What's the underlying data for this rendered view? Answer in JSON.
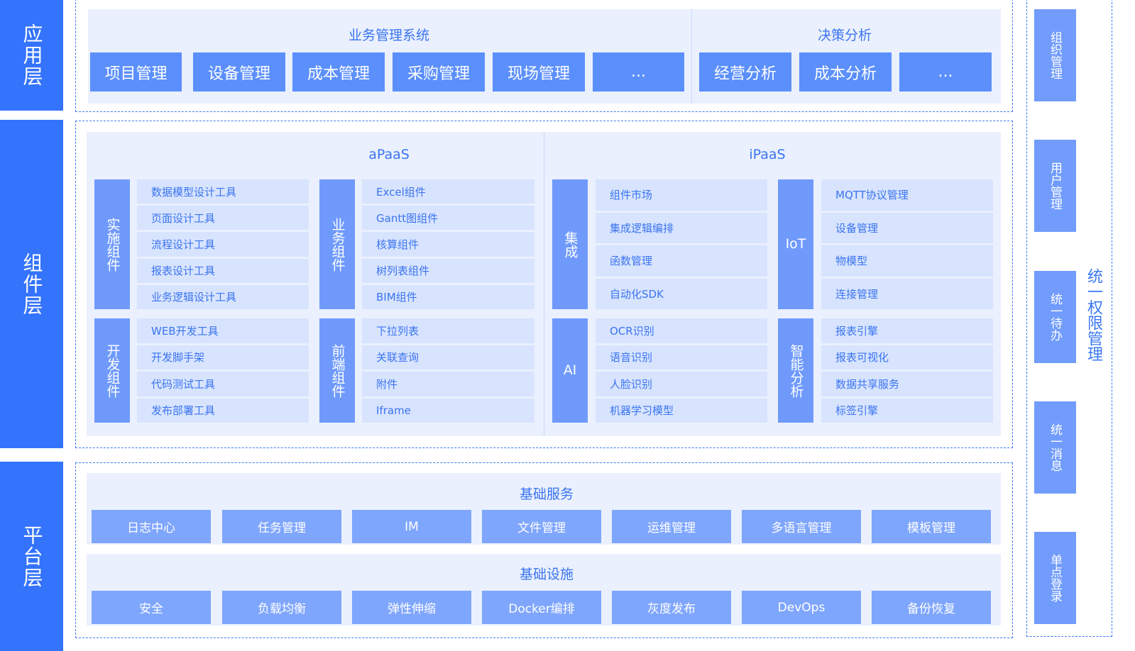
{
  "layers": {
    "app": "应用层",
    "component": "组件层",
    "platform": "平台层"
  },
  "app": {
    "biz_title": "业务管理系统",
    "biz_items": [
      "项目管理",
      "设备管理",
      "成本管理",
      "采购管理",
      "现场管理",
      "..."
    ],
    "decision_title": "决策分析",
    "decision_items": [
      "经营分析",
      "成本分析",
      "..."
    ]
  },
  "component": {
    "apaas_title": "aPaaS",
    "ipaas_title": "iPaaS",
    "groups": [
      {
        "label": "实施组件",
        "items": [
          "数据模型设计工具",
          "页面设计工具",
          "流程设计工具",
          "报表设计工具",
          "业务逻辑设计工具"
        ]
      },
      {
        "label": "开发组件",
        "items": [
          "WEB开发工具",
          "开发脚手架",
          "代码测试工具",
          "发布部署工具"
        ]
      },
      {
        "label": "业务组件",
        "items": [
          "Excel组件",
          "Gantt图组件",
          "核算组件",
          "树列表组件",
          "BIM组件"
        ]
      },
      {
        "label": "前端组件",
        "items": [
          "下拉列表",
          "关联查询",
          "附件",
          "Iframe"
        ]
      },
      {
        "label": "集成",
        "items": [
          "组件市场",
          "集成逻辑编排",
          "函数管理",
          "自动化SDK"
        ]
      },
      {
        "label": "AI",
        "items": [
          "OCR识别",
          "语音识别",
          "人脸识别",
          "机器学习模型"
        ]
      },
      {
        "label": "IoT",
        "items": [
          "MQTT协议管理",
          "设备管理",
          "物模型",
          "连接管理"
        ]
      },
      {
        "label": "智能分析",
        "items": [
          "报表引擎",
          "报表可视化",
          "数据共享服务",
          "标签引擎"
        ]
      }
    ]
  },
  "platform": {
    "services_title": "基础服务",
    "services": [
      "日志中心",
      "任务管理",
      "IM",
      "文件管理",
      "运维管理",
      "多语言管理",
      "模板管理"
    ],
    "infra_title": "基础设施",
    "infra": [
      "安全",
      "负载均衡",
      "弹性伸缩",
      "Docker编排",
      "灰度发布",
      "DevOps",
      "备份恢复"
    ]
  },
  "side": {
    "title": "统一权限管理",
    "items": [
      "组织管理",
      "用户管理",
      "统一待办",
      "统一消息",
      "单点登录"
    ]
  },
  "colors": {
    "layer": "#3473fb",
    "app_button": "#5b8ffc",
    "panel": "#eaf0fe",
    "item": "#d8e4fe",
    "label_bar": "#6f9afc",
    "platform_button": "#7fa6fd",
    "text": "#3a74f0"
  }
}
